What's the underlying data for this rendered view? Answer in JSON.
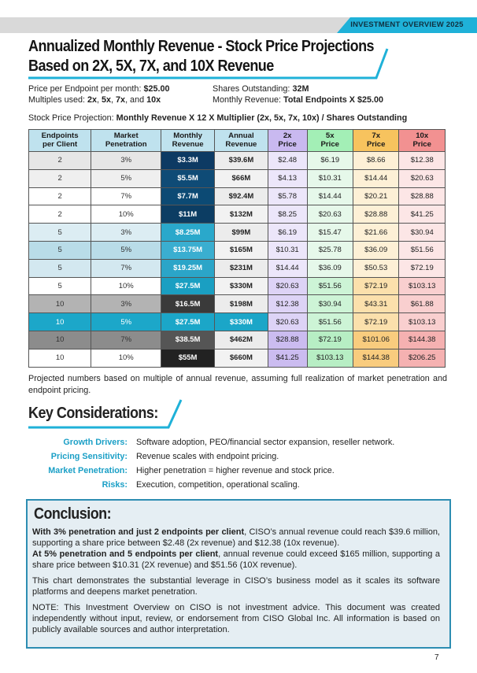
{
  "header": {
    "banner": "INVESTMENT OVERVIEW 2025",
    "title": [
      "Annualized Monthly Revenue - Stock Price Projections",
      "Based on 2X, 5X, 7X, and 10X Revenue"
    ]
  },
  "info": [
    [
      {
        "text": "Price per Endpoint per month: ",
        "bold": false
      },
      {
        "text": "$25.00",
        "bold": true
      }
    ],
    [
      {
        "text": "Shares Outstanding: ",
        "bold": false
      },
      {
        "text": "32M",
        "bold": true
      }
    ],
    [
      {
        "text": "Multiples used: ",
        "bold": false
      },
      {
        "text": "2x",
        "bold": true
      },
      {
        "text": ", ",
        "bold": false
      },
      {
        "text": "5x",
        "bold": true
      },
      {
        "text": ", ",
        "bold": false
      },
      {
        "text": "7x",
        "bold": true
      },
      {
        "text": ", and ",
        "bold": false
      },
      {
        "text": "10x",
        "bold": true
      }
    ],
    [
      {
        "text": "Monthly Revenue: ",
        "bold": false
      },
      {
        "text": "Total Endpoints X $25.00",
        "bold": true
      }
    ]
  ],
  "formula": [
    {
      "text": "Stock Price Projection: ",
      "bold": false
    },
    {
      "text": "Monthly Revenue X 12 X Multiplier (2x, 5x, 7x, 10x) / Shares Outstanding",
      "bold": true
    }
  ],
  "table": {
    "headers": [
      [
        "Endpoints",
        "per Client"
      ],
      [
        "Market",
        "Penetration"
      ],
      [
        "Monthly",
        "Revenue"
      ],
      [
        "Annual",
        "Revenue"
      ],
      [
        "2x",
        "Price"
      ],
      [
        "5x",
        "Price"
      ],
      [
        "7x",
        "Price"
      ],
      [
        "10x",
        "Price"
      ]
    ],
    "rows": [
      [
        "2",
        "3%",
        "$3.3M",
        "$39.6M",
        "$2.48",
        "$6.19",
        "$8.66",
        "$12.38"
      ],
      [
        "2",
        "5%",
        "$5.5M",
        "$66M",
        "$4.13",
        "$10.31",
        "$14.44",
        "$20.63"
      ],
      [
        "2",
        "7%",
        "$7.7M",
        "$92.4M",
        "$5.78",
        "$14.44",
        "$20.21",
        "$28.88"
      ],
      [
        "2",
        "10%",
        "$11M",
        "$132M",
        "$8.25",
        "$20.63",
        "$28.88",
        "$41.25"
      ],
      [
        "5",
        "3%",
        "$8.25M",
        "$99M",
        "$6.19",
        "$15.47",
        "$21.66",
        "$30.94"
      ],
      [
        "5",
        "5%",
        "$13.75M",
        "$165M",
        "$10.31",
        "$25.78",
        "$36.09",
        "$51.56"
      ],
      [
        "5",
        "7%",
        "$19.25M",
        "$231M",
        "$14.44",
        "$36.09",
        "$50.53",
        "$72.19"
      ],
      [
        "5",
        "10%",
        "$27.5M",
        "$330M",
        "$20.63",
        "$51.56",
        "$72.19",
        "$103.13"
      ],
      [
        "10",
        "3%",
        "$16.5M",
        "$198M",
        "$12.38",
        "$30.94",
        "$43.31",
        "$61.88"
      ],
      [
        "10",
        "5%",
        "$27.5M",
        "$330M",
        "$20.63",
        "$51.56",
        "$72.19",
        "$103.13"
      ],
      [
        "10",
        "7%",
        "$38.5M",
        "$462M",
        "$28.88",
        "$72.19",
        "$101.06",
        "$144.38"
      ],
      [
        "10",
        "10%",
        "$55M",
        "$660M",
        "$41.25",
        "$103.13",
        "$144.38",
        "$206.25"
      ]
    ]
  },
  "note": "Projected numbers based on multiple of annual revenue, assuming full realization of market penetration and endpoint pricing.",
  "considerations": {
    "title": "Key Considerations:",
    "items": [
      {
        "label": "Growth Drivers:",
        "text": "Software adoption, PEO/financial sector expansion, reseller network."
      },
      {
        "label": "Pricing Sensitivity:",
        "text": "Revenue scales with endpoint pricing."
      },
      {
        "label": "Market Penetration:",
        "text": "Higher penetration = higher revenue and stock price."
      },
      {
        "label": "Risks:",
        "text": "Execution, competition, operational scaling."
      }
    ]
  },
  "conclusion": {
    "title": "Conclusion:",
    "paragraphs": [
      [
        {
          "text": "With 3% penetration and just 2 endpoints per client",
          "bold": true
        },
        {
          "text": ", CISO’s annual revenue could reach $39.6 million, supporting a share price between $2.48 (2x revenue) and $12.38 (10x revenue).",
          "bold": false
        }
      ],
      [
        {
          "text": "At 5% penetration and 5 endpoints per client",
          "bold": true
        },
        {
          "text": ", annual revenue could exceed $165 million, supporting a share price between $10.31 (2X revenue) and $51.56 (10X revenue).",
          "bold": false
        }
      ],
      [
        {
          "text": "This chart demonstrates the substantial leverage in CISO’s business model as it scales its software platforms and deepens market penetration.",
          "bold": false
        }
      ],
      [
        {
          "text": "NOTE: This Investment Overview on CISO is not investment advice. This document was created independently without input, review, or endorsement from CISO Global Inc. All information is based on publicly available sources and author interpretation.",
          "bold": false
        }
      ]
    ]
  },
  "page_number": "7"
}
